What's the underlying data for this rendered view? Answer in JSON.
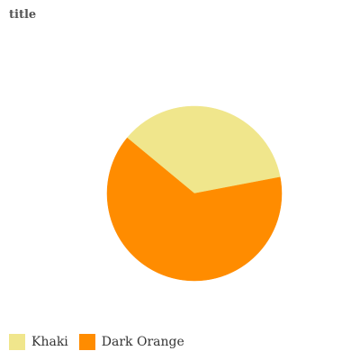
{
  "chart_data": {
    "type": "pie",
    "title": "title",
    "categories": [
      "Khaki",
      "Dark Orange"
    ],
    "values": [
      36,
      64
    ],
    "colors": [
      "#f0e68c",
      "#ff8c00"
    ],
    "legend_position": "bottom-left"
  }
}
